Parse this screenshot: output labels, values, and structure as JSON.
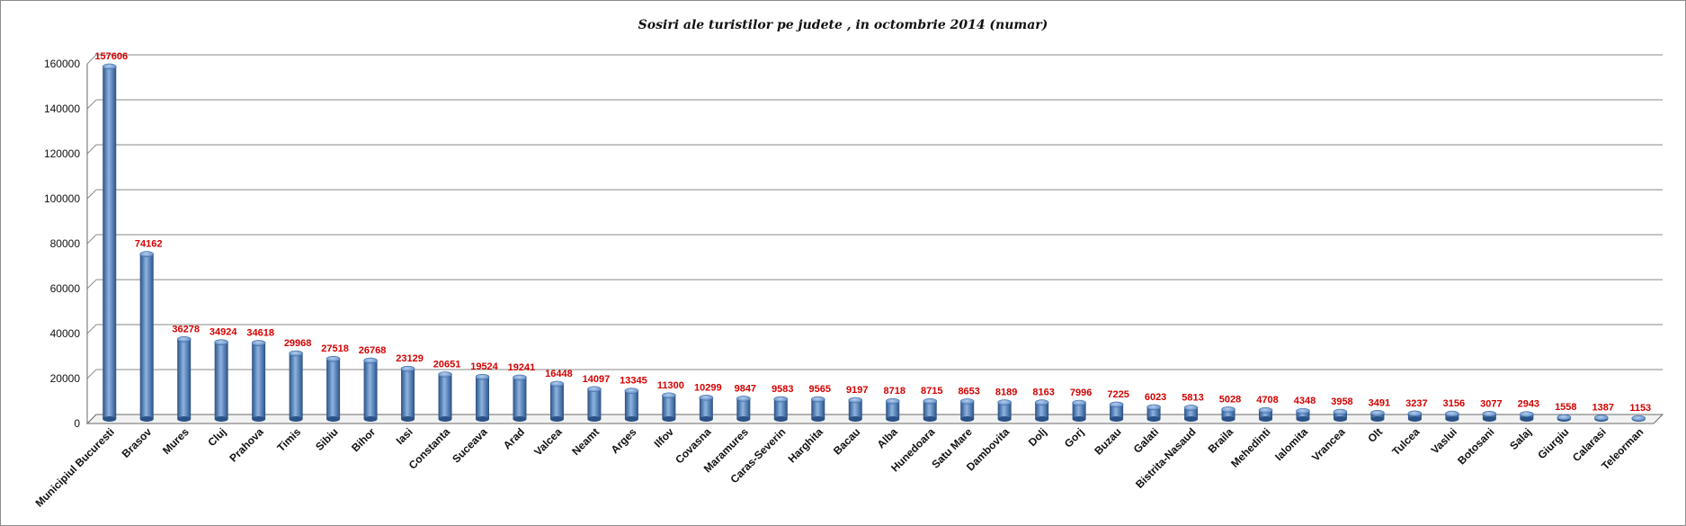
{
  "chart_data": {
    "type": "bar",
    "title": "Sosiri ale turistilor  pe judete , in octombrie 2014 (numar)",
    "xlabel": "",
    "ylabel": "",
    "ylim": [
      0,
      160000
    ],
    "yticks": [
      0,
      20000,
      40000,
      60000,
      80000,
      100000,
      120000,
      140000,
      160000
    ],
    "grid": true,
    "categories": [
      "Municipiul Bucuresti",
      "Brasov",
      "Mures",
      "Cluj",
      "Prahova",
      "Timis",
      "Sibiu",
      "Bihor",
      "Iasi",
      "Constanta",
      "Suceava",
      "Arad",
      "Valcea",
      "Neamt",
      "Arges",
      "Ilfov",
      "Covasna",
      "Maramures",
      "Caras-Severin",
      "Harghita",
      "Bacau",
      "Alba",
      "Hunedoara",
      "Satu Mare",
      "Dambovita",
      "Dolj",
      "Gorj",
      "Buzau",
      "Galati",
      "Bistrita-Nasaud",
      "Braila",
      "Mehedinti",
      "Ialomita",
      "Vrancea",
      "Olt",
      "Tulcea",
      "Vaslui",
      "Botosani",
      "Salaj",
      "Giurgiu",
      "Calarasi",
      "Teleorman"
    ],
    "values": [
      157606,
      74162,
      36278,
      34924,
      34618,
      29968,
      27518,
      26768,
      23129,
      20651,
      19524,
      19241,
      16448,
      14097,
      13345,
      11300,
      10299,
      9847,
      9583,
      9565,
      9197,
      8718,
      8715,
      8653,
      8189,
      8163,
      7996,
      7225,
      6023,
      5813,
      5028,
      4708,
      4348,
      3958,
      3491,
      3237,
      3156,
      3077,
      2943,
      1558,
      1387,
      1153
    ],
    "colors": {
      "bar": "#4f81bd",
      "bar_dark": "#2a5286",
      "bar_light": "#8db3e2",
      "label": "#d40000",
      "grid": "#808080"
    }
  }
}
